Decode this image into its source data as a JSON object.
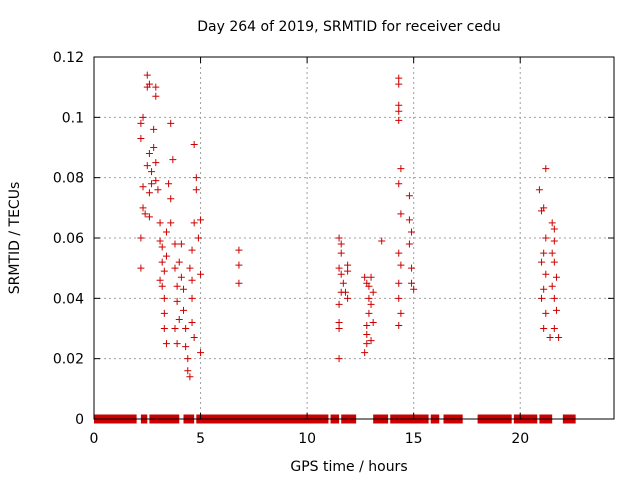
{
  "chart_data": {
    "type": "scatter",
    "title": "Day 264 of 2019, SRMTID for receiver cedu",
    "xlabel": "GPS time / hours",
    "ylabel": "SRMTID / TECUs",
    "xlim": [
      0,
      24.4
    ],
    "ylim": [
      0,
      0.12
    ],
    "xticks": [
      0,
      5,
      10,
      15,
      20
    ],
    "xtick_labels": [
      "0",
      "5",
      "10",
      "15",
      "20"
    ],
    "yticks": [
      0,
      0.02,
      0.04,
      0.06,
      0.08,
      0.1,
      0.12
    ],
    "ytick_labels": [
      "0",
      "0.02",
      "0.04",
      "0.06",
      "0.08",
      "0.1",
      "0.12"
    ],
    "grid": true,
    "marker": "+",
    "color": "#cc0000",
    "zero_runs": [
      [
        0.0,
        2.0
      ],
      [
        2.2,
        2.5
      ],
      [
        2.6,
        4.0
      ],
      [
        4.2,
        4.7
      ],
      [
        4.8,
        11.0
      ],
      [
        11.1,
        11.5
      ],
      [
        11.6,
        12.3
      ],
      [
        13.1,
        13.8
      ],
      [
        13.9,
        15.7
      ],
      [
        15.8,
        16.2
      ],
      [
        16.4,
        17.3
      ],
      [
        18.0,
        19.6
      ],
      [
        19.7,
        20.8
      ],
      [
        20.9,
        21.5
      ],
      [
        22.0,
        22.6
      ]
    ],
    "points": [
      [
        2.2,
        0.098
      ],
      [
        2.3,
        0.1
      ],
      [
        2.2,
        0.093
      ],
      [
        2.5,
        0.114
      ],
      [
        2.6,
        0.111
      ],
      [
        2.5,
        0.11
      ],
      [
        2.9,
        0.107
      ],
      [
        2.9,
        0.11
      ],
      [
        2.3,
        0.077
      ],
      [
        2.3,
        0.07
      ],
      [
        2.4,
        0.068
      ],
      [
        2.6,
        0.067
      ],
      [
        2.2,
        0.06
      ],
      [
        2.2,
        0.05
      ],
      [
        2.5,
        0.084
      ],
      [
        2.6,
        0.088
      ],
      [
        2.7,
        0.082
      ],
      [
        2.8,
        0.096
      ],
      [
        2.8,
        0.09
      ],
      [
        2.7,
        0.078
      ],
      [
        2.9,
        0.085
      ],
      [
        2.9,
        0.079
      ],
      [
        3.0,
        0.076
      ],
      [
        2.6,
        0.075
      ],
      [
        3.1,
        0.065
      ],
      [
        3.1,
        0.059
      ],
      [
        3.2,
        0.057
      ],
      [
        3.2,
        0.052
      ],
      [
        3.3,
        0.049
      ],
      [
        3.1,
        0.046
      ],
      [
        3.2,
        0.044
      ],
      [
        3.3,
        0.04
      ],
      [
        3.3,
        0.035
      ],
      [
        3.3,
        0.03
      ],
      [
        3.4,
        0.025
      ],
      [
        3.4,
        0.054
      ],
      [
        3.4,
        0.062
      ],
      [
        3.5,
        0.078
      ],
      [
        3.6,
        0.073
      ],
      [
        3.6,
        0.065
      ],
      [
        3.6,
        0.098
      ],
      [
        3.7,
        0.086
      ],
      [
        3.8,
        0.058
      ],
      [
        3.8,
        0.05
      ],
      [
        3.9,
        0.044
      ],
      [
        3.9,
        0.039
      ],
      [
        3.8,
        0.03
      ],
      [
        3.9,
        0.025
      ],
      [
        4.0,
        0.052
      ],
      [
        4.0,
        0.033
      ],
      [
        4.1,
        0.058
      ],
      [
        4.1,
        0.047
      ],
      [
        4.2,
        0.043
      ],
      [
        4.2,
        0.036
      ],
      [
        4.3,
        0.03
      ],
      [
        4.3,
        0.024
      ],
      [
        4.4,
        0.02
      ],
      [
        4.4,
        0.016
      ],
      [
        4.5,
        0.014
      ],
      [
        4.5,
        0.05
      ],
      [
        4.6,
        0.056
      ],
      [
        4.6,
        0.046
      ],
      [
        4.6,
        0.04
      ],
      [
        4.6,
        0.032
      ],
      [
        4.7,
        0.027
      ],
      [
        4.7,
        0.091
      ],
      [
        4.8,
        0.08
      ],
      [
        4.8,
        0.076
      ],
      [
        4.7,
        0.065
      ],
      [
        4.9,
        0.06
      ],
      [
        5.0,
        0.066
      ],
      [
        5.0,
        0.048
      ],
      [
        5.0,
        0.022
      ],
      [
        6.8,
        0.056
      ],
      [
        6.8,
        0.051
      ],
      [
        6.8,
        0.045
      ],
      [
        11.5,
        0.06
      ],
      [
        11.6,
        0.058
      ],
      [
        11.6,
        0.055
      ],
      [
        11.5,
        0.05
      ],
      [
        11.6,
        0.048
      ],
      [
        11.7,
        0.045
      ],
      [
        11.6,
        0.042
      ],
      [
        11.5,
        0.038
      ],
      [
        11.5,
        0.032
      ],
      [
        11.5,
        0.03
      ],
      [
        11.5,
        0.02
      ],
      [
        11.9,
        0.051
      ],
      [
        11.9,
        0.049
      ],
      [
        11.8,
        0.042
      ],
      [
        11.9,
        0.04
      ],
      [
        12.7,
        0.047
      ],
      [
        12.8,
        0.045
      ],
      [
        12.9,
        0.044
      ],
      [
        13.0,
        0.047
      ],
      [
        12.9,
        0.04
      ],
      [
        12.9,
        0.035
      ],
      [
        13.0,
        0.038
      ],
      [
        12.8,
        0.031
      ],
      [
        12.8,
        0.028
      ],
      [
        12.8,
        0.025
      ],
      [
        12.7,
        0.022
      ],
      [
        13.0,
        0.026
      ],
      [
        13.1,
        0.032
      ],
      [
        13.1,
        0.042
      ],
      [
        13.5,
        0.059
      ],
      [
        14.3,
        0.113
      ],
      [
        14.3,
        0.111
      ],
      [
        14.3,
        0.104
      ],
      [
        14.3,
        0.102
      ],
      [
        14.3,
        0.099
      ],
      [
        14.4,
        0.083
      ],
      [
        14.3,
        0.078
      ],
      [
        14.4,
        0.068
      ],
      [
        14.3,
        0.055
      ],
      [
        14.4,
        0.051
      ],
      [
        14.3,
        0.045
      ],
      [
        14.3,
        0.04
      ],
      [
        14.4,
        0.035
      ],
      [
        14.3,
        0.031
      ],
      [
        14.8,
        0.074
      ],
      [
        14.8,
        0.066
      ],
      [
        14.9,
        0.062
      ],
      [
        14.8,
        0.058
      ],
      [
        14.9,
        0.05
      ],
      [
        14.9,
        0.045
      ],
      [
        15.0,
        0.043
      ],
      [
        20.9,
        0.076
      ],
      [
        21.2,
        0.083
      ],
      [
        21.1,
        0.07
      ],
      [
        21.0,
        0.069
      ],
      [
        21.2,
        0.06
      ],
      [
        21.1,
        0.055
      ],
      [
        21.0,
        0.052
      ],
      [
        21.2,
        0.048
      ],
      [
        21.1,
        0.043
      ],
      [
        21.0,
        0.04
      ],
      [
        21.2,
        0.035
      ],
      [
        21.1,
        0.03
      ],
      [
        21.4,
        0.027
      ],
      [
        21.5,
        0.065
      ],
      [
        21.6,
        0.063
      ],
      [
        21.6,
        0.059
      ],
      [
        21.5,
        0.055
      ],
      [
        21.6,
        0.052
      ],
      [
        21.7,
        0.047
      ],
      [
        21.5,
        0.044
      ],
      [
        21.6,
        0.04
      ],
      [
        21.7,
        0.036
      ],
      [
        21.6,
        0.03
      ],
      [
        21.8,
        0.027
      ]
    ]
  }
}
